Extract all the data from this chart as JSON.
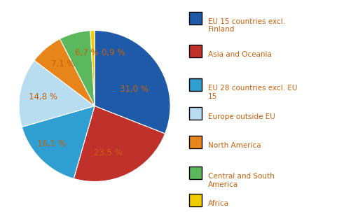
{
  "values": [
    31.0,
    23.5,
    16.1,
    14.8,
    7.1,
    6.7,
    0.9
  ],
  "colors": [
    "#1F5AA8",
    "#C0312B",
    "#2E9FD0",
    "#B8DCF0",
    "#E8851A",
    "#5CB85C",
    "#F0CC00"
  ],
  "pct_labels": [
    "31,0 %",
    "23,5 %",
    "16,1 %",
    "14,8 %",
    "7,1 %",
    "6,7 %",
    "0,9 %"
  ],
  "legend_labels": [
    "EU 15 countries excl.\nFinland",
    "Asia and Oceania",
    "EU 28 countries excl. EU\n15",
    "Europe outside EU",
    "North America",
    "Central and South\nAmerica",
    "Africa"
  ],
  "startangle": 90,
  "background_color": "#ffffff",
  "label_color": "#C8600A",
  "legend_text_color": "#C8600A",
  "fontsize": 8.5
}
